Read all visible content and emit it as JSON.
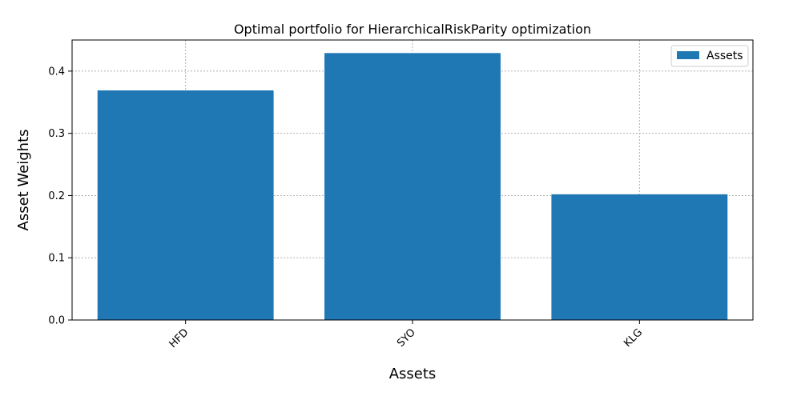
{
  "chart_data": {
    "type": "bar",
    "title": "Optimal portfolio for HierarchicalRiskParity optimization",
    "xlabel": "Assets",
    "ylabel": "Asset Weights",
    "categories": [
      "HFD",
      "SYO",
      "KLG"
    ],
    "series": [
      {
        "name": "Assets",
        "values": [
          0.369,
          0.429,
          0.202
        ]
      }
    ],
    "ylim": [
      0,
      0.45
    ],
    "yticks": [
      0.0,
      0.1,
      0.2,
      0.3,
      0.4
    ],
    "grid": true,
    "legend": "top-right",
    "colors": {
      "bar": "#1f77b4",
      "grid": "#b0b0b0",
      "axis": "#000000"
    }
  }
}
